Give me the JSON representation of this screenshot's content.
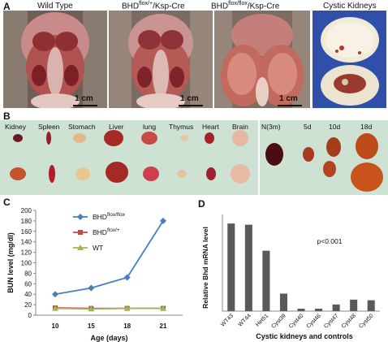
{
  "panels": {
    "A": "A",
    "B": "B",
    "C": "C",
    "D": "D"
  },
  "panel_a": {
    "titles": [
      "Wild Type",
      "BHD",
      "flox/+",
      "/Ksp-Cre",
      "BHD",
      "flox/flox",
      "/Ksp-Cre",
      "Cystic Kidneys"
    ],
    "scalebar": "1 cm"
  },
  "panel_b": {
    "organs": [
      "Kidney",
      "Spleen",
      "Stomach",
      "Liver",
      "lung",
      "Thymus",
      "Heart",
      "Brain"
    ],
    "timepoints": [
      "N(3m)",
      "5d",
      "10d",
      "18d"
    ]
  },
  "chart_data": [
    {
      "type": "line",
      "ylabel": "BUN level (mg/dl)",
      "xlabel": "Age (days)",
      "categories": [
        "10",
        "15",
        "18",
        "21"
      ],
      "ylim": [
        0,
        200
      ],
      "yticks": [
        0,
        20,
        40,
        60,
        80,
        100,
        120,
        140,
        160,
        180,
        200
      ],
      "legend_position": "top-left",
      "series": [
        {
          "name": "BHD",
          "sup": "flox/flox",
          "values": [
            40,
            52,
            72,
            180
          ],
          "color": "#4a7ebb",
          "marker": "diamond"
        },
        {
          "name": "BHD",
          "sup": "flox/+",
          "values": [
            14,
            13,
            13,
            13
          ],
          "color": "#be4b48",
          "marker": "square"
        },
        {
          "name": "WT",
          "sup": "",
          "values": [
            13,
            12,
            13,
            13
          ],
          "color": "#98b954",
          "marker": "triangle"
        }
      ]
    },
    {
      "type": "bar",
      "ylabel": "Relative Bhd mRNA level",
      "xlabel": "Cystic kidneys and controls",
      "categories": [
        "WT43",
        "WT44",
        "Het51",
        "Cyst39",
        "Cyst40",
        "Cyst46",
        "Cyst47",
        "Cyst48",
        "Cyst50"
      ],
      "values": [
        1.45,
        1.43,
        1.0,
        0.29,
        0.04,
        0.04,
        0.11,
        0.19,
        0.18
      ],
      "ylim": [
        0,
        1.6
      ],
      "annotation": "p<0.001",
      "color": "#595959"
    }
  ]
}
